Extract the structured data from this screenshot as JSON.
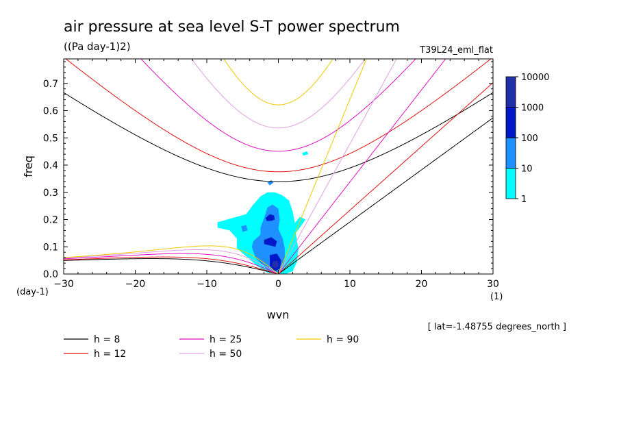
{
  "chart_data": {
    "type": "heatmap",
    "title": "air pressure at sea level S-T power spectrum",
    "units": "((Pa day-1)2)",
    "experiment": "T39L24_eml_flat",
    "xlabel": "wvn",
    "ylabel": "freq",
    "x_unit": "(1)",
    "y_unit": "(day-1)",
    "xlim": [
      -30,
      30
    ],
    "ylim": [
      0,
      0.79
    ],
    "x_ticks": [
      -30,
      -20,
      -10,
      0,
      10,
      20,
      30
    ],
    "x_tick_labels": [
      "-30",
      "-20",
      "-10",
      "0",
      "10",
      "20",
      "30"
    ],
    "y_ticks": [
      0,
      0.1,
      0.2,
      0.3,
      0.4,
      0.5,
      0.6,
      0.7
    ],
    "y_tick_labels": [
      "0.0",
      "0.1",
      "0.2",
      "0.3",
      "0.4",
      "0.5",
      "0.6",
      "0.7"
    ],
    "grid": false,
    "annotation": "[ lat=-1.48755 degrees_north ]",
    "colorbar": {
      "levels": [
        "1",
        "10",
        "100",
        "1000",
        "10000"
      ],
      "colors": [
        "#00ffff",
        "#1e90ff",
        "#0018c8",
        "#2030a8",
        "#4a10b0"
      ]
    },
    "dispersion_curves": [
      {
        "label": "h =  8",
        "h": 8,
        "color": "#000000"
      },
      {
        "label": "h = 12",
        "h": 12,
        "color": "#e01010"
      },
      {
        "label": "h = 25",
        "h": 25,
        "color": "#e010c0"
      },
      {
        "label": "h = 50",
        "h": 50,
        "color": "#e0a0e0"
      },
      {
        "label": "h = 90",
        "h": 90,
        "color": "#f0c800"
      }
    ],
    "power_regions": [
      {
        "level": 1,
        "points": [
          [
            -8.5,
            0.19
          ],
          [
            -6.5,
            0.205
          ],
          [
            -4.5,
            0.22
          ],
          [
            -3.5,
            0.255
          ],
          [
            -2.5,
            0.285
          ],
          [
            -1.5,
            0.3
          ],
          [
            -0.5,
            0.3
          ],
          [
            0.5,
            0.29
          ],
          [
            1.5,
            0.27
          ],
          [
            2.0,
            0.23
          ],
          [
            2.3,
            0.19
          ],
          [
            2.5,
            0.14
          ],
          [
            2.8,
            0.09
          ],
          [
            2.6,
            0.045
          ],
          [
            2.0,
            0.01
          ],
          [
            1.0,
            0.0
          ],
          [
            -1.5,
            0.005
          ],
          [
            -3.0,
            0.03
          ],
          [
            -4.5,
            0.065
          ],
          [
            -5.8,
            0.095
          ],
          [
            -5.8,
            0.13
          ],
          [
            -6.8,
            0.16
          ],
          [
            -8.5,
            0.17
          ]
        ]
      },
      {
        "level": 1,
        "points": [
          [
            -0.3,
            0.075
          ],
          [
            1.5,
            0.12
          ],
          [
            3.0,
            0.17
          ],
          [
            3.8,
            0.2
          ],
          [
            3.0,
            0.21
          ],
          [
            1.5,
            0.16
          ],
          [
            0.0,
            0.11
          ]
        ]
      },
      {
        "level": 1,
        "points": [
          [
            3.3,
            0.445
          ],
          [
            4.0,
            0.45
          ],
          [
            4.2,
            0.44
          ],
          [
            3.5,
            0.435
          ]
        ]
      },
      {
        "level": 10,
        "points": [
          [
            -3.5,
            0.12
          ],
          [
            -2.5,
            0.145
          ],
          [
            -2.5,
            0.17
          ],
          [
            -2.0,
            0.205
          ],
          [
            -1.5,
            0.245
          ],
          [
            -0.8,
            0.255
          ],
          [
            0.0,
            0.24
          ],
          [
            0.2,
            0.2
          ],
          [
            0.0,
            0.165
          ],
          [
            0.6,
            0.13
          ],
          [
            0.9,
            0.095
          ],
          [
            0.9,
            0.055
          ],
          [
            0.6,
            0.025
          ],
          [
            0.1,
            0.005
          ],
          [
            -1.2,
            0.01
          ],
          [
            -2.3,
            0.035
          ],
          [
            -3.2,
            0.06
          ],
          [
            -3.7,
            0.1
          ]
        ]
      },
      {
        "level": 10,
        "points": [
          [
            -5.2,
            0.175
          ],
          [
            -4.5,
            0.18
          ],
          [
            -4.3,
            0.16
          ],
          [
            -5.0,
            0.155
          ]
        ]
      },
      {
        "level": 10,
        "points": [
          [
            -1.5,
            0.335
          ],
          [
            -1.0,
            0.345
          ],
          [
            -0.7,
            0.335
          ],
          [
            -1.2,
            0.325
          ]
        ]
      },
      {
        "level": 100,
        "points": [
          [
            -1.8,
            0.205
          ],
          [
            -1.2,
            0.22
          ],
          [
            -0.6,
            0.215
          ],
          [
            -0.5,
            0.2
          ],
          [
            -1.0,
            0.195
          ],
          [
            -1.6,
            0.195
          ]
        ]
      },
      {
        "level": 100,
        "points": [
          [
            -2.0,
            0.125
          ],
          [
            -1.0,
            0.135
          ],
          [
            -0.2,
            0.12
          ],
          [
            -0.4,
            0.1
          ],
          [
            -1.2,
            0.105
          ],
          [
            -2.0,
            0.11
          ]
        ]
      },
      {
        "level": 100,
        "points": [
          [
            -1.2,
            0.07
          ],
          [
            -0.2,
            0.075
          ],
          [
            0.4,
            0.05
          ],
          [
            0.2,
            0.02
          ],
          [
            -0.5,
            0.01
          ],
          [
            -1.2,
            0.03
          ]
        ]
      },
      {
        "level": 1000,
        "points": [
          [
            -0.8,
            0.045
          ],
          [
            -0.2,
            0.05
          ],
          [
            0.1,
            0.03
          ],
          [
            -0.4,
            0.02
          ],
          [
            -0.9,
            0.03
          ]
        ]
      }
    ]
  }
}
